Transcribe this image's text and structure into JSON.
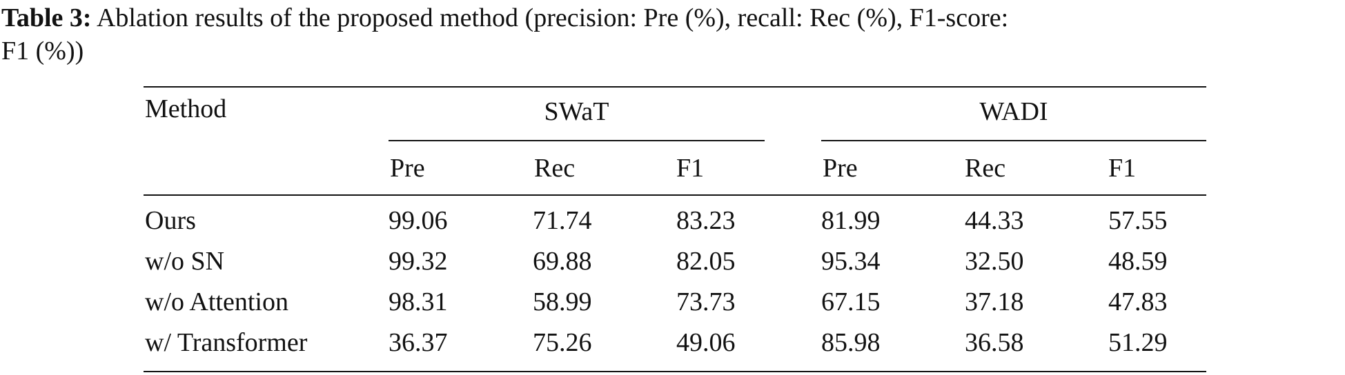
{
  "caption": {
    "label": "Table 3:",
    "text": "Ablation results of the proposed method (precision: Pre (%), recall: Rec (%), F1-score:",
    "text_line2": "F1 (%))"
  },
  "table": {
    "method_header": "Method",
    "groups": [
      "SWaT",
      "WADI"
    ],
    "metrics": [
      "Pre",
      "Rec",
      "F1"
    ],
    "rows": [
      {
        "method": "Ours",
        "values": [
          "99.06",
          "71.74",
          "83.23",
          "81.99",
          "44.33",
          "57.55"
        ]
      },
      {
        "method": "w/o SN",
        "values": [
          "99.32",
          "69.88",
          "82.05",
          "95.34",
          "32.50",
          "48.59"
        ]
      },
      {
        "method": "w/o Attention",
        "values": [
          "98.31",
          "58.99",
          "73.73",
          "67.15",
          "37.18",
          "47.83"
        ]
      },
      {
        "method": "w/ Transformer",
        "values": [
          "36.37",
          "75.26",
          "49.06",
          "85.98",
          "36.58",
          "51.29"
        ]
      }
    ]
  }
}
